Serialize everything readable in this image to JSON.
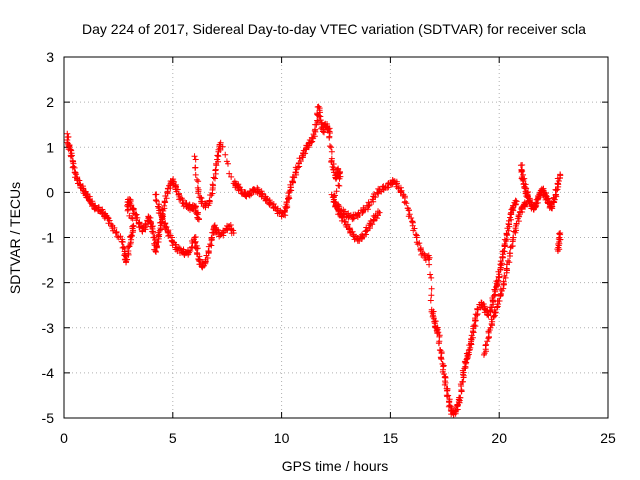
{
  "chart_data": {
    "type": "scatter",
    "title": "Day 224 of 2017, Sidereal Day-to-day VTEC variation (SDTVAR) for receiver scla",
    "xlabel": "GPS time / hours",
    "ylabel": "SDTVAR / TECUs",
    "xlim": [
      0,
      25
    ],
    "ylim": [
      -5,
      3
    ],
    "xticks": [
      0,
      5,
      10,
      15,
      20,
      25
    ],
    "yticks": [
      -5,
      -4,
      -3,
      -2,
      -1,
      0,
      1,
      2,
      3
    ],
    "grid": true,
    "marker": "+",
    "colors": {
      "series": "#ff0000",
      "grid": "#b0b0b0",
      "axes": "#000000"
    },
    "series": [
      {
        "name": "SDTVAR",
        "path": [
          [
            0.15,
            1.3
          ],
          [
            0.2,
            1.05
          ],
          [
            0.3,
            0.95
          ],
          [
            0.4,
            0.7
          ],
          [
            0.5,
            0.45
          ],
          [
            0.6,
            0.3
          ],
          [
            0.75,
            0.15
          ],
          [
            0.9,
            0.05
          ],
          [
            1.0,
            -0.05
          ],
          [
            1.1,
            -0.1
          ],
          [
            1.2,
            -0.2
          ],
          [
            1.35,
            -0.3
          ],
          [
            1.5,
            -0.35
          ],
          [
            1.7,
            -0.4
          ],
          [
            1.85,
            -0.5
          ],
          [
            2.0,
            -0.55
          ],
          [
            2.2,
            -0.75
          ],
          [
            2.4,
            -0.9
          ],
          [
            2.7,
            -1.1
          ],
          [
            2.8,
            -1.4
          ],
          [
            2.85,
            -1.55
          ],
          [
            3.0,
            -1.2
          ],
          [
            3.1,
            -0.95
          ],
          [
            3.2,
            -0.75
          ],
          [
            2.9,
            -0.3
          ],
          [
            3.0,
            -0.15
          ],
          [
            3.15,
            -0.35
          ],
          [
            3.3,
            -0.5
          ],
          [
            3.45,
            -0.7
          ],
          [
            3.6,
            -0.85
          ],
          [
            3.75,
            -0.75
          ],
          [
            3.9,
            -0.55
          ],
          [
            4.0,
            -0.7
          ],
          [
            4.1,
            -0.9
          ],
          [
            4.2,
            -1.3
          ],
          [
            4.3,
            -1.1
          ],
          [
            4.4,
            -0.85
          ],
          [
            4.5,
            -0.6
          ],
          [
            4.6,
            -0.3
          ],
          [
            4.75,
            0.0
          ],
          [
            4.9,
            0.2
          ],
          [
            5.0,
            0.25
          ],
          [
            5.15,
            0.1
          ],
          [
            5.3,
            -0.1
          ],
          [
            5.5,
            -0.25
          ],
          [
            5.7,
            -0.3
          ],
          [
            5.85,
            -0.35
          ],
          [
            6.0,
            -0.3
          ],
          [
            6.1,
            -0.45
          ],
          [
            6.2,
            -0.6
          ],
          [
            4.2,
            -0.05
          ],
          [
            4.35,
            -0.35
          ],
          [
            4.5,
            -0.55
          ],
          [
            4.65,
            -0.75
          ],
          [
            4.8,
            -0.9
          ],
          [
            5.0,
            -1.1
          ],
          [
            5.2,
            -1.25
          ],
          [
            5.4,
            -1.3
          ],
          [
            5.6,
            -1.35
          ],
          [
            5.8,
            -1.3
          ],
          [
            6.0,
            -1.0
          ],
          [
            6.1,
            -1.25
          ],
          [
            6.2,
            -1.5
          ],
          [
            6.35,
            -1.65
          ],
          [
            6.5,
            -1.55
          ],
          [
            6.65,
            -1.3
          ],
          [
            6.8,
            -1.0
          ],
          [
            6.9,
            -0.75
          ],
          [
            7.0,
            -0.85
          ],
          [
            7.2,
            -0.95
          ],
          [
            7.4,
            -0.85
          ],
          [
            7.6,
            -0.75
          ],
          [
            7.8,
            -0.9
          ],
          [
            6.0,
            0.8
          ],
          [
            6.15,
            0.1
          ],
          [
            6.3,
            -0.2
          ],
          [
            6.5,
            -0.3
          ],
          [
            6.7,
            -0.2
          ],
          [
            6.85,
            0.15
          ],
          [
            7.0,
            0.6
          ],
          [
            7.1,
            0.9
          ],
          [
            7.2,
            1.1
          ],
          [
            7.8,
            0.2
          ],
          [
            7.95,
            0.15
          ],
          [
            8.1,
            0.05
          ],
          [
            8.3,
            -0.05
          ],
          [
            8.5,
            -0.05
          ],
          [
            8.7,
            0.05
          ],
          [
            8.9,
            0.05
          ],
          [
            9.1,
            -0.05
          ],
          [
            9.3,
            -0.15
          ],
          [
            9.5,
            -0.25
          ],
          [
            9.7,
            -0.35
          ],
          [
            9.9,
            -0.45
          ],
          [
            10.1,
            -0.5
          ],
          [
            10.2,
            -0.35
          ],
          [
            10.3,
            -0.15
          ],
          [
            10.4,
            0.05
          ],
          [
            10.5,
            0.25
          ],
          [
            10.65,
            0.45
          ],
          [
            10.8,
            0.65
          ],
          [
            11.0,
            0.85
          ],
          [
            11.15,
            1.0
          ],
          [
            11.3,
            1.1
          ],
          [
            11.45,
            1.2
          ],
          [
            11.6,
            1.5
          ],
          [
            11.7,
            1.9
          ],
          [
            11.8,
            1.6
          ],
          [
            11.9,
            1.35
          ],
          [
            12.0,
            1.5
          ],
          [
            12.1,
            1.45
          ],
          [
            12.2,
            1.35
          ],
          [
            12.3,
            0.7
          ],
          [
            12.4,
            0.5
          ],
          [
            12.5,
            0.3
          ],
          [
            12.6,
            0.5
          ],
          [
            12.7,
            0.35
          ],
          [
            12.4,
            -0.2
          ],
          [
            12.55,
            -0.35
          ],
          [
            12.7,
            -0.5
          ],
          [
            12.9,
            -0.65
          ],
          [
            13.1,
            -0.8
          ],
          [
            13.3,
            -0.95
          ],
          [
            13.5,
            -1.05
          ],
          [
            13.7,
            -1.0
          ],
          [
            13.9,
            -0.85
          ],
          [
            14.1,
            -0.7
          ],
          [
            14.3,
            -0.55
          ],
          [
            14.5,
            -0.45
          ],
          [
            12.3,
            -0.05
          ],
          [
            12.5,
            -0.25
          ],
          [
            12.75,
            -0.4
          ],
          [
            13.0,
            -0.5
          ],
          [
            13.25,
            -0.55
          ],
          [
            13.5,
            -0.5
          ],
          [
            13.75,
            -0.4
          ],
          [
            14.0,
            -0.3
          ],
          [
            14.25,
            -0.1
          ],
          [
            14.5,
            0.05
          ],
          [
            14.75,
            0.1
          ],
          [
            15.0,
            0.2
          ],
          [
            15.2,
            0.25
          ],
          [
            15.4,
            0.1
          ],
          [
            15.6,
            -0.05
          ],
          [
            15.8,
            -0.35
          ],
          [
            16.0,
            -0.65
          ],
          [
            16.2,
            -1.0
          ],
          [
            16.4,
            -1.3
          ],
          [
            16.6,
            -1.45
          ],
          [
            16.8,
            -1.45
          ],
          [
            16.9,
            -2.6
          ],
          [
            17.0,
            -2.8
          ],
          [
            17.1,
            -3.0
          ],
          [
            17.2,
            -3.1
          ],
          [
            17.3,
            -3.5
          ],
          [
            17.4,
            -3.8
          ],
          [
            17.5,
            -4.1
          ],
          [
            17.6,
            -4.4
          ],
          [
            17.7,
            -4.65
          ],
          [
            17.8,
            -4.85
          ],
          [
            17.9,
            -4.9
          ],
          [
            18.0,
            -4.85
          ],
          [
            18.1,
            -4.7
          ],
          [
            18.2,
            -4.55
          ],
          [
            18.3,
            -4.2
          ],
          [
            18.4,
            -3.9
          ],
          [
            18.5,
            -3.7
          ],
          [
            18.6,
            -3.55
          ],
          [
            18.7,
            -3.35
          ],
          [
            18.8,
            -3.1
          ],
          [
            18.9,
            -2.85
          ],
          [
            19.0,
            -2.6
          ],
          [
            19.2,
            -2.45
          ],
          [
            19.35,
            -2.6
          ],
          [
            19.5,
            -2.7
          ],
          [
            19.65,
            -2.55
          ],
          [
            19.75,
            -2.3
          ],
          [
            19.85,
            -2.1
          ],
          [
            19.95,
            -1.95
          ],
          [
            20.05,
            -1.7
          ],
          [
            20.15,
            -1.45
          ],
          [
            20.25,
            -1.2
          ],
          [
            20.35,
            -0.95
          ],
          [
            20.45,
            -0.7
          ],
          [
            20.55,
            -0.45
          ],
          [
            20.65,
            -0.3
          ],
          [
            20.8,
            -0.2
          ],
          [
            19.3,
            -3.6
          ],
          [
            19.45,
            -3.3
          ],
          [
            19.6,
            -3.0
          ],
          [
            19.75,
            -2.75
          ],
          [
            19.9,
            -2.55
          ],
          [
            20.05,
            -2.3
          ],
          [
            20.2,
            -2.05
          ],
          [
            20.35,
            -1.7
          ],
          [
            20.5,
            -1.35
          ],
          [
            20.65,
            -1.0
          ],
          [
            20.8,
            -0.7
          ],
          [
            20.95,
            -0.45
          ],
          [
            21.1,
            -0.3
          ],
          [
            21.25,
            -0.25
          ],
          [
            21.0,
            0.6
          ],
          [
            21.1,
            0.3
          ],
          [
            21.2,
            0.1
          ],
          [
            21.3,
            -0.05
          ],
          [
            21.4,
            -0.2
          ],
          [
            21.5,
            -0.3
          ],
          [
            21.6,
            -0.35
          ],
          [
            21.7,
            -0.25
          ],
          [
            21.8,
            -0.1
          ],
          [
            21.9,
            0.0
          ],
          [
            22.0,
            0.05
          ],
          [
            22.1,
            -0.05
          ],
          [
            22.2,
            -0.15
          ],
          [
            22.3,
            -0.25
          ],
          [
            22.4,
            -0.35
          ],
          [
            22.5,
            -0.2
          ],
          [
            22.6,
            -0.05
          ],
          [
            22.7,
            0.2
          ],
          [
            22.8,
            0.4
          ],
          [
            22.7,
            -1.3
          ],
          [
            22.75,
            -1.1
          ],
          [
            22.8,
            -0.9
          ]
        ]
      }
    ]
  }
}
